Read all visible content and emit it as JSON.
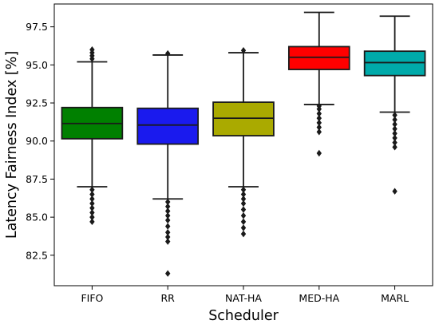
{
  "chart_data": {
    "type": "box",
    "xlabel": "Scheduler",
    "ylabel": "Latency Fairness Index [%]",
    "ylim": [
      80.5,
      99.0
    ],
    "yticks": [
      82.5,
      85.0,
      87.5,
      90.0,
      92.5,
      95.0,
      97.5
    ],
    "ytick_labels": [
      "82.5",
      "85.0",
      "87.5",
      "90.0",
      "92.5",
      "95.0",
      "97.5"
    ],
    "grid": false,
    "legend": "none",
    "categories": [
      "FIFO",
      "RR",
      "NAT-HA",
      "MED-HA",
      "MARL"
    ],
    "series": [
      {
        "category": "FIFO",
        "color": "#008000",
        "whisker_low": 87.0,
        "q1": 90.15,
        "median": 91.15,
        "q3": 92.2,
        "whisker_high": 95.2,
        "outliers": [
          84.7,
          85.0,
          85.3,
          85.6,
          85.9,
          86.2,
          86.5,
          86.8,
          95.4,
          95.6,
          95.8,
          96.0
        ]
      },
      {
        "category": "RR",
        "color": "#1a1aee",
        "whisker_low": 86.2,
        "q1": 89.8,
        "median": 91.05,
        "q3": 92.15,
        "whisker_high": 95.65,
        "outliers": [
          81.3,
          83.4,
          83.7,
          84.0,
          84.4,
          84.8,
          85.1,
          85.4,
          85.7,
          86.0,
          95.75
        ]
      },
      {
        "category": "NAT-HA",
        "color": "#aaaa00",
        "whisker_low": 87.0,
        "q1": 90.35,
        "median": 91.5,
        "q3": 92.55,
        "whisker_high": 95.8,
        "outliers": [
          83.9,
          84.3,
          84.7,
          85.1,
          85.5,
          85.9,
          86.2,
          86.5,
          86.8,
          95.95
        ]
      },
      {
        "category": "MED-HA",
        "color": "#ff0000",
        "whisker_low": 92.4,
        "q1": 94.7,
        "median": 95.5,
        "q3": 96.2,
        "whisker_high": 98.45,
        "outliers": [
          89.2,
          90.6,
          90.9,
          91.2,
          91.5,
          91.8,
          92.1,
          92.3
        ]
      },
      {
        "category": "MARL",
        "color": "#00aaaa",
        "whisker_low": 91.9,
        "q1": 94.3,
        "median": 95.15,
        "q3": 95.9,
        "whisker_high": 98.2,
        "outliers": [
          86.7,
          89.6,
          89.9,
          90.2,
          90.5,
          90.8,
          91.1,
          91.4,
          91.7
        ]
      }
    ]
  }
}
